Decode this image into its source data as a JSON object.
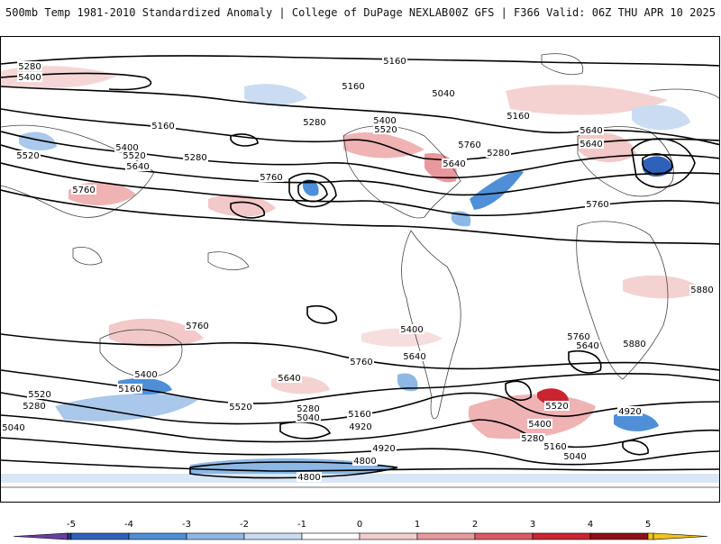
{
  "header": {
    "title": "500mb Temp 1981-2010 Standardized Anomaly | College of DuPage NEXLAB",
    "run_info": "00Z GFS | F366 Valid: 06Z THU APR 10 2025"
  },
  "map": {
    "contour_labels": [
      "5280",
      "5400",
      "5160",
      "5160",
      "5040",
      "5160",
      "5280",
      "5400",
      "5520",
      "5640",
      "5520",
      "5640",
      "5160",
      "5400",
      "5520",
      "5640",
      "5280",
      "5760",
      "5760",
      "5640",
      "5760",
      "5280",
      "5760",
      "5880",
      "5760",
      "5640",
      "5760",
      "5400",
      "5640",
      "5760",
      "5640",
      "5880",
      "5400",
      "5160",
      "5520",
      "5280",
      "5040",
      "5520",
      "5280",
      "5040",
      "5160",
      "4920",
      "4920",
      "4800",
      "4800",
      "5520",
      "5400",
      "5280",
      "5160",
      "5040",
      "4920"
    ]
  },
  "colorbar": {
    "ticks": [
      "-5",
      "-4",
      "-3",
      "-2",
      "-1",
      "0",
      "1",
      "2",
      "3",
      "4",
      "5"
    ],
    "colors": [
      "#6a3fa0",
      "#1f3a7a",
      "#2e62b8",
      "#4e8fd8",
      "#8db8e6",
      "#c9dcf2",
      "#ffffff",
      "#f3cdcd",
      "#e8999d",
      "#d95b63",
      "#c82530",
      "#8f1016",
      "#f0c419"
    ]
  }
}
